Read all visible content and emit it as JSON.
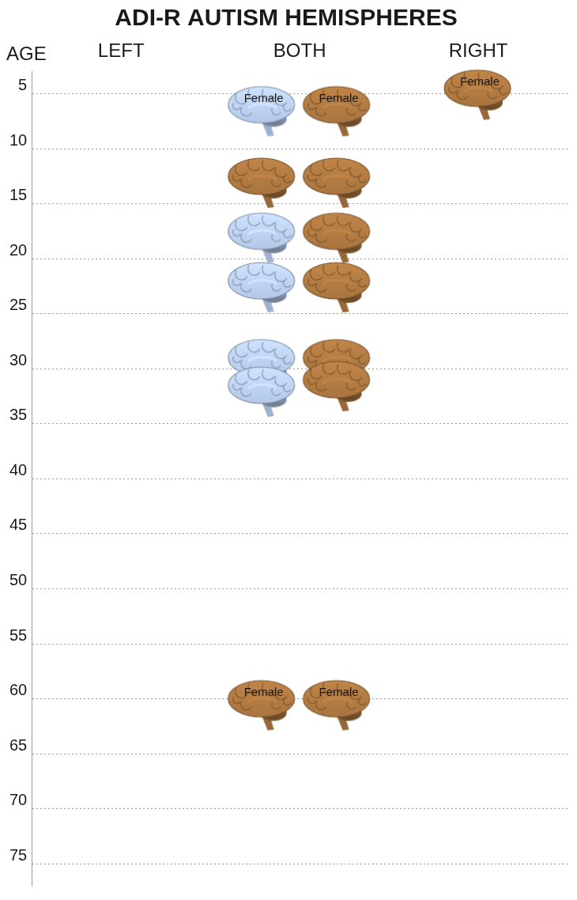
{
  "chart_data": {
    "type": "scatter",
    "title": "ADI-R AUTISM HEMISPHERES",
    "y_label": "AGE",
    "categories": [
      "LEFT",
      "BOTH",
      "RIGHT"
    ],
    "ylim": [
      3,
      77
    ],
    "yticks": [
      5,
      10,
      15,
      20,
      25,
      30,
      35,
      40,
      45,
      50,
      55,
      60,
      65,
      70,
      75
    ],
    "grid": true,
    "marker": "brain",
    "points": [
      {
        "x": "BOTH",
        "y": 6.5,
        "color": "#b3c6e7",
        "label": "Female"
      },
      {
        "x": "BOTH",
        "y": 6.5,
        "color": "#a8743f",
        "label": "Female"
      },
      {
        "x": "RIGHT",
        "y": 5,
        "color": "#a8743f",
        "label": "Female"
      },
      {
        "x": "BOTH",
        "y": 13,
        "color": "#a8743f"
      },
      {
        "x": "BOTH",
        "y": 13,
        "color": "#a8743f"
      },
      {
        "x": "BOTH",
        "y": 18,
        "color": "#b3c6e7"
      },
      {
        "x": "BOTH",
        "y": 18,
        "color": "#a8743f"
      },
      {
        "x": "BOTH",
        "y": 22.5,
        "color": "#b3c6e7"
      },
      {
        "x": "BOTH",
        "y": 22.5,
        "color": "#a8743f"
      },
      {
        "x": "BOTH",
        "y": 29.5,
        "color": "#b3c6e7"
      },
      {
        "x": "BOTH",
        "y": 29.5,
        "color": "#a8743f"
      },
      {
        "x": "BOTH",
        "y": 32,
        "color": "#b3c6e7"
      },
      {
        "x": "BOTH",
        "y": 31.5,
        "color": "#a8743f"
      },
      {
        "x": "BOTH",
        "y": 60.5,
        "color": "#a8743f",
        "label": "Female"
      },
      {
        "x": "BOTH",
        "y": 60.5,
        "color": "#a8743f",
        "label": "Female"
      }
    ]
  }
}
